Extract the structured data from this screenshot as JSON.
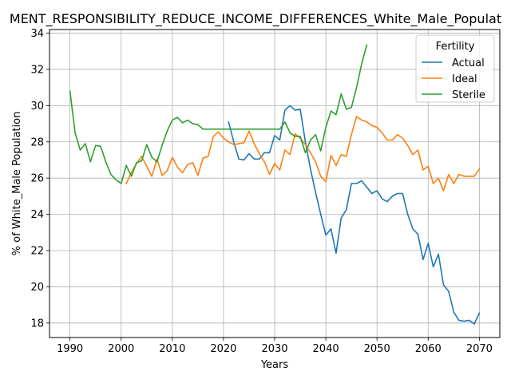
{
  "chart_data": {
    "type": "line",
    "title": "MENT_RESPONSIBILITY_REDUCE_INCOME_DIFFERENCES_White_Male_Populat",
    "xlabel": "Years",
    "ylabel": "% of White_Male Population",
    "xlim": [
      1986,
      2074
    ],
    "ylim": [
      17.2,
      34.2
    ],
    "xticks": [
      1990,
      2000,
      2010,
      2020,
      2030,
      2040,
      2050,
      2060,
      2070
    ],
    "yticks": [
      18,
      20,
      22,
      24,
      26,
      28,
      30,
      32,
      34
    ],
    "grid": true,
    "legend": {
      "title": "Fertility",
      "placement": "top-right"
    },
    "series": [
      {
        "name": "Actual",
        "color": "#1f77b4",
        "x": [
          2021,
          2022,
          2023,
          2024,
          2025,
          2026,
          2027,
          2028,
          2029,
          2030,
          2031,
          2032,
          2033,
          2034,
          2035,
          2036,
          2037,
          2038,
          2039,
          2040,
          2041,
          2042,
          2043,
          2044,
          2045,
          2046,
          2047,
          2048,
          2049,
          2050,
          2051,
          2052,
          2053,
          2054,
          2055,
          2056,
          2057,
          2058,
          2059,
          2060,
          2061,
          2062,
          2063,
          2064,
          2065,
          2066,
          2067,
          2068,
          2069,
          2070
        ],
        "y": [
          29.1,
          28.0,
          27.05,
          27.0,
          27.35,
          27.05,
          27.05,
          27.4,
          27.4,
          28.35,
          28.1,
          29.75,
          30.0,
          29.75,
          29.8,
          28.0,
          26.5,
          25.2,
          24.0,
          22.85,
          23.2,
          21.85,
          23.8,
          24.25,
          25.7,
          25.7,
          25.85,
          25.5,
          25.15,
          25.3,
          24.85,
          24.7,
          25.0,
          25.15,
          25.15,
          24.0,
          23.2,
          22.9,
          21.5,
          22.4,
          21.1,
          21.8,
          20.1,
          19.75,
          18.6,
          18.15,
          18.1,
          18.15,
          17.95,
          18.55
        ]
      },
      {
        "name": "Ideal",
        "color": "#ff7f0e",
        "x": [
          2001,
          2002,
          2003,
          2004,
          2005,
          2006,
          2007,
          2008,
          2009,
          2010,
          2011,
          2012,
          2013,
          2014,
          2015,
          2016,
          2017,
          2018,
          2019,
          2020,
          2021,
          2022,
          2023,
          2024,
          2025,
          2026,
          2027,
          2028,
          2029,
          2030,
          2031,
          2032,
          2033,
          2034,
          2035,
          2036,
          2037,
          2038,
          2039,
          2040,
          2041,
          2042,
          2043,
          2044,
          2045,
          2046,
          2047,
          2048,
          2049,
          2050,
          2051,
          2052,
          2053,
          2054,
          2055,
          2056,
          2057,
          2058,
          2059,
          2060,
          2061,
          2062,
          2063,
          2064,
          2065,
          2066,
          2067,
          2068,
          2069,
          2070
        ],
        "y": [
          25.7,
          26.3,
          26.8,
          27.2,
          26.65,
          26.1,
          27.05,
          26.15,
          26.4,
          27.15,
          26.6,
          26.3,
          26.75,
          26.85,
          26.15,
          27.1,
          27.2,
          28.3,
          28.55,
          28.2,
          28.0,
          27.85,
          27.9,
          27.95,
          28.6,
          27.9,
          27.35,
          26.9,
          26.2,
          26.8,
          26.45,
          27.55,
          27.3,
          28.45,
          28.2,
          27.85,
          27.4,
          26.9,
          26.1,
          25.8,
          27.25,
          26.7,
          27.3,
          27.2,
          28.4,
          29.4,
          29.2,
          29.1,
          28.9,
          28.8,
          28.5,
          28.1,
          28.1,
          28.4,
          28.2,
          27.8,
          27.3,
          27.55,
          26.45,
          26.65,
          25.7,
          26.0,
          25.3,
          26.2,
          25.7,
          26.2,
          26.1,
          26.1,
          26.1,
          26.5
        ]
      },
      {
        "name": "Sterile",
        "color": "#2ca02c",
        "x": [
          1990,
          1991,
          1992,
          1993,
          1994,
          1995,
          1996,
          1997,
          1998,
          1999,
          2000,
          2001,
          2002,
          2003,
          2004,
          2005,
          2006,
          2007,
          2008,
          2009,
          2010,
          2011,
          2012,
          2013,
          2014,
          2015,
          2016,
          2017,
          2018,
          2019,
          2020,
          2021,
          2022,
          2023,
          2024,
          2025,
          2026,
          2027,
          2028,
          2029,
          2030,
          2031,
          2032,
          2033,
          2034,
          2035,
          2036,
          2037,
          2038,
          2039,
          2040,
          2041,
          2042,
          2043,
          2044,
          2045,
          2046,
          2047,
          2048
        ],
        "y": [
          30.8,
          28.5,
          27.55,
          27.9,
          26.9,
          27.8,
          27.75,
          26.9,
          26.2,
          25.9,
          25.7,
          26.7,
          26.1,
          26.85,
          26.95,
          27.85,
          27.15,
          26.9,
          27.8,
          28.6,
          29.2,
          29.35,
          29.05,
          29.2,
          29.0,
          28.95,
          28.7,
          28.7,
          28.7,
          28.7,
          28.7,
          28.7,
          28.7,
          28.7,
          28.7,
          28.7,
          28.7,
          28.7,
          28.7,
          28.7,
          28.7,
          28.7,
          29.1,
          28.5,
          28.3,
          28.3,
          27.4,
          28.1,
          28.4,
          27.5,
          28.8,
          29.7,
          29.5,
          30.65,
          29.8,
          29.9,
          31.0,
          32.3,
          33.35
        ]
      }
    ]
  }
}
